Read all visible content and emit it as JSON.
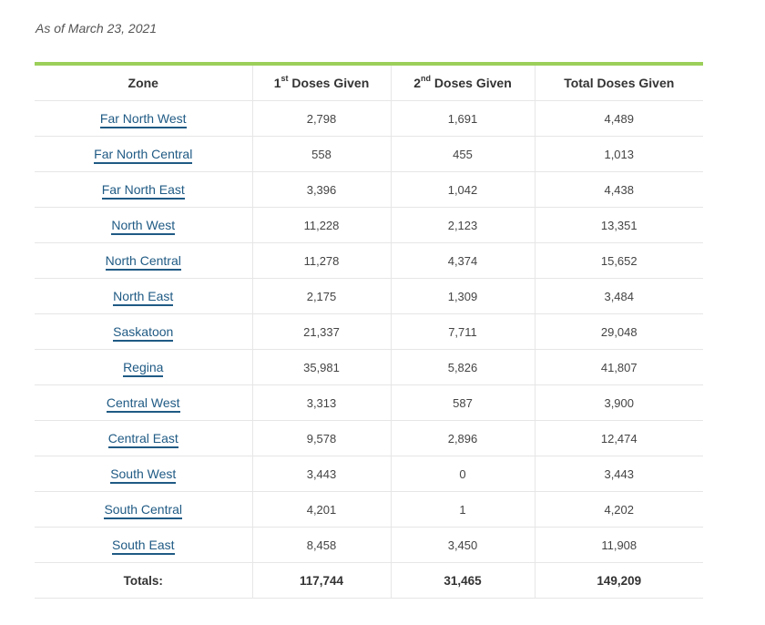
{
  "as_of": "As of March 23, 2021",
  "columns": {
    "zone": "Zone",
    "first_prefix": "1",
    "first_sup": "st",
    "first_suffix": " Doses Given",
    "second_prefix": "2",
    "second_sup": "nd",
    "second_suffix": " Doses Given",
    "total": "Total Doses Given"
  },
  "rows": [
    {
      "zone": "Far North West",
      "first": "2,798",
      "second": "1,691",
      "total": "4,489"
    },
    {
      "zone": "Far North Central",
      "first": "558",
      "second": "455",
      "total": "1,013"
    },
    {
      "zone": "Far North East",
      "first": "3,396",
      "second": "1,042",
      "total": "4,438"
    },
    {
      "zone": "North West",
      "first": "11,228",
      "second": "2,123",
      "total": "13,351"
    },
    {
      "zone": "North Central",
      "first": "11,278",
      "second": "4,374",
      "total": "15,652"
    },
    {
      "zone": "North East",
      "first": "2,175",
      "second": "1,309",
      "total": "3,484"
    },
    {
      "zone": "Saskatoon",
      "first": "21,337",
      "second": "7,711",
      "total": "29,048"
    },
    {
      "zone": "Regina",
      "first": "35,981",
      "second": "5,826",
      "total": "41,807"
    },
    {
      "zone": "Central West",
      "first": "3,313",
      "second": "587",
      "total": "3,900"
    },
    {
      "zone": "Central East",
      "first": "9,578",
      "second": "2,896",
      "total": "12,474"
    },
    {
      "zone": "South West",
      "first": "3,443",
      "second": "0",
      "total": "3,443"
    },
    {
      "zone": "South Central",
      "first": "4,201",
      "second": "1",
      "total": "4,202"
    },
    {
      "zone": "South East",
      "first": "8,458",
      "second": "3,450",
      "total": "11,908"
    }
  ],
  "totals": {
    "label": "Totals:",
    "first": "117,744",
    "second": "31,465",
    "total": "149,209"
  },
  "colors": {
    "accent_rule": "#9bcf5a",
    "link": "#1f5a84"
  }
}
